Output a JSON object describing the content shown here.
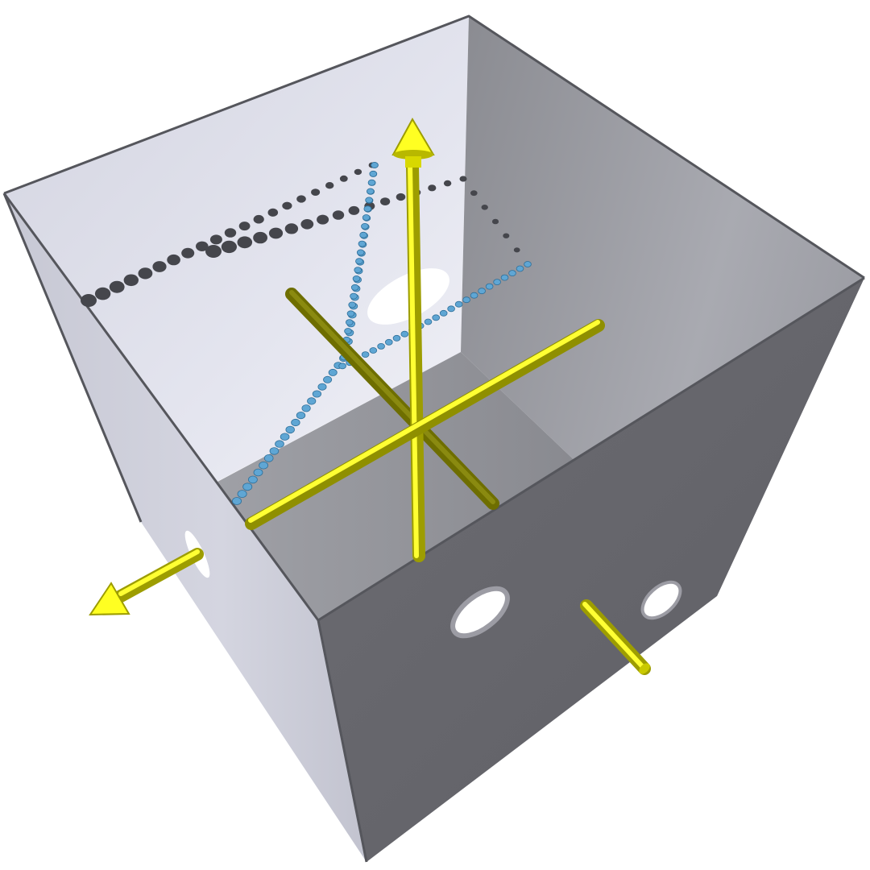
{
  "scene": {
    "subject": "open-box-with-coordinate-axes",
    "colors": {
      "background": "#ffffff",
      "back_wall": "#dcdde8",
      "right_wall": "#9a9ba2",
      "left_wall": "#c9cad6",
      "front_wall": "#67676d",
      "floor": "#8d8e93",
      "edge": "#55565c",
      "axis_yellow": "#ffff22",
      "axis_yellow_dark": "#6e6e00",
      "dot_blue": "#5fa6d4",
      "dot_gray": "#45464c",
      "hole": "#ffffff"
    },
    "icons": [
      "arrow-up-icon",
      "arrow-left-icon"
    ]
  }
}
